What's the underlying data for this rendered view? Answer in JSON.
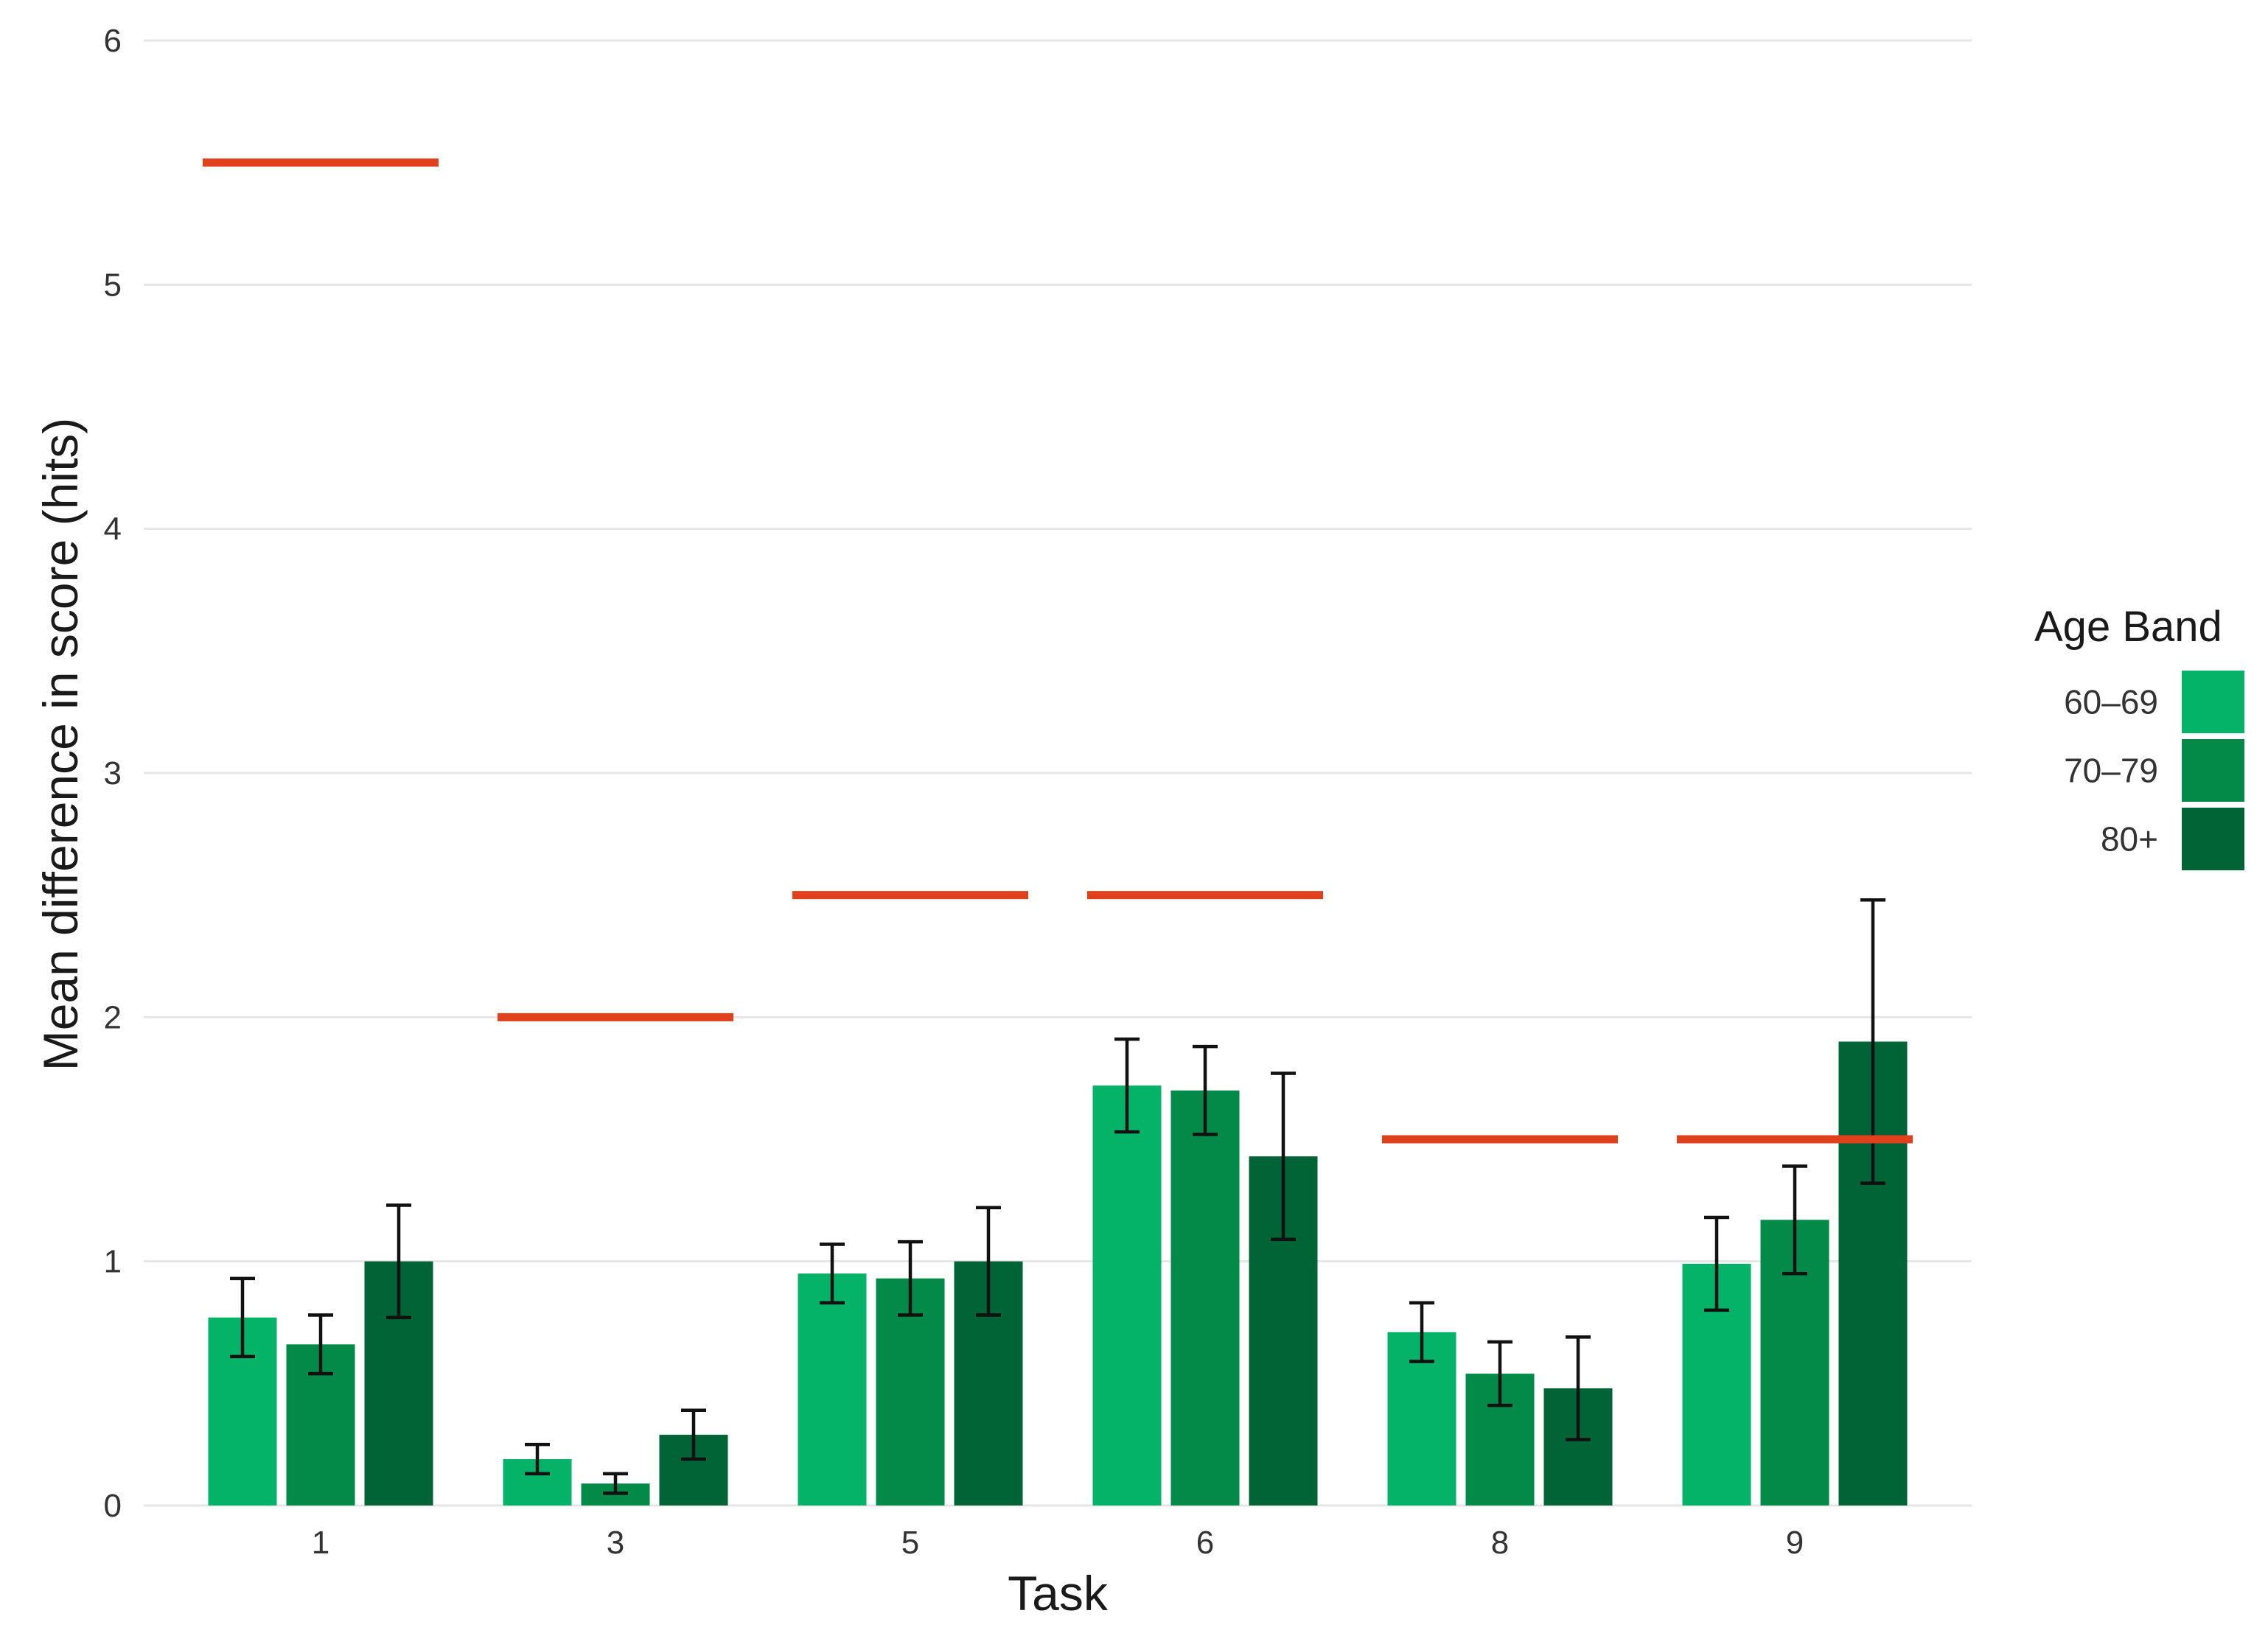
{
  "chart_data": {
    "type": "bar",
    "xlabel": "Task",
    "ylabel": "Mean difference in score (hits)",
    "ylim": [
      0,
      6
    ],
    "yticks": [
      0,
      1,
      2,
      3,
      4,
      5,
      6
    ],
    "grid": true,
    "legend": {
      "title": "Age Band",
      "placement": "right"
    },
    "categories": [
      "1",
      "3",
      "5",
      "6",
      "8",
      "9"
    ],
    "series": [
      {
        "name": "60–69",
        "color": "#05b368",
        "values": [
          0.77,
          0.19,
          0.95,
          1.72,
          0.71,
          0.99
        ],
        "error_low": [
          0.61,
          0.13,
          0.83,
          1.53,
          0.59,
          0.8
        ],
        "error_high": [
          0.93,
          0.25,
          1.07,
          1.91,
          0.83,
          1.18
        ]
      },
      {
        "name": "70–79",
        "color": "#038a49",
        "values": [
          0.66,
          0.09,
          0.93,
          1.7,
          0.54,
          1.17
        ],
        "error_low": [
          0.54,
          0.05,
          0.78,
          1.52,
          0.41,
          0.95
        ],
        "error_high": [
          0.78,
          0.13,
          1.08,
          1.88,
          0.67,
          1.39
        ]
      },
      {
        "name": "80+",
        "color": "#006437",
        "values": [
          1.0,
          0.29,
          1.0,
          1.43,
          0.48,
          1.9
        ],
        "error_low": [
          0.77,
          0.19,
          0.78,
          1.09,
          0.27,
          1.32
        ],
        "error_high": [
          1.23,
          0.39,
          1.22,
          1.77,
          0.69,
          2.48
        ]
      }
    ],
    "reference_lines": {
      "color": "#e0401c",
      "values": [
        5.5,
        2.0,
        2.5,
        2.5,
        1.5,
        1.5
      ]
    }
  }
}
